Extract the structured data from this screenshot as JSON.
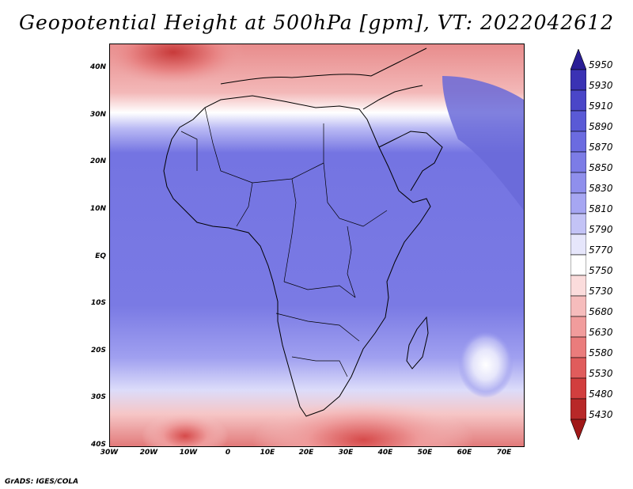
{
  "title": "Geopotential Height at 500hPa [gpm], VT: 2022042612",
  "credit": "GrADS: IGES/COLA",
  "map": {
    "lat_labels": [
      "40N",
      "30N",
      "20N",
      "10N",
      "EQ",
      "10S",
      "20S",
      "30S",
      "40S"
    ],
    "lon_labels": [
      "30W",
      "20W",
      "10W",
      "0",
      "10E",
      "20E",
      "30E",
      "40E",
      "50E",
      "60E",
      "70E"
    ]
  },
  "colorbar": {
    "levels": [
      "5950",
      "5930",
      "5910",
      "5890",
      "5870",
      "5850",
      "5830",
      "5810",
      "5790",
      "5770",
      "5750",
      "5730",
      "5680",
      "5630",
      "5580",
      "5530",
      "5480",
      "5430"
    ],
    "colors": [
      "#2a1e96",
      "#3a32b4",
      "#4a46c8",
      "#5a5ad6",
      "#6b6be0",
      "#7c7ce6",
      "#8f8fec",
      "#a6a6f2",
      "#c3c3f6",
      "#e6e6fb",
      "#ffffff",
      "#fbdcdc",
      "#f6bcbc",
      "#f19c9c",
      "#ea7c7c",
      "#e05c5c",
      "#d23e3e",
      "#b82828",
      "#a01818"
    ]
  }
}
